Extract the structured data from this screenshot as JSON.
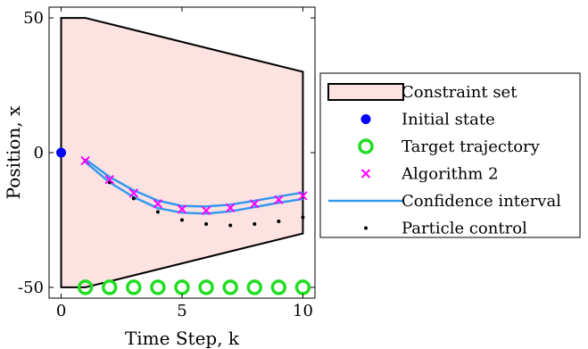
{
  "chart_data": {
    "type": "line",
    "xlabel": "Time Step, k",
    "ylabel": "Position, x",
    "xlim": [
      -0.5,
      10.5
    ],
    "ylim": [
      -54,
      54
    ],
    "xticks": [
      0,
      5,
      10
    ],
    "xtick_labels": [
      "0",
      "5",
      "10"
    ],
    "yticks": [
      50,
      0,
      -50
    ],
    "ytick_labels": [
      "50",
      "0",
      "-50"
    ],
    "grid": false,
    "legend_position": "outside-right",
    "constraint_set": {
      "name": "Constraint set",
      "fill_color": "#fde2e2",
      "edge_color": "#000000",
      "vertices": [
        [
          0,
          50
        ],
        [
          1,
          50
        ],
        [
          10,
          30
        ],
        [
          10,
          -30
        ],
        [
          1,
          -50
        ],
        [
          0,
          -50
        ]
      ]
    },
    "series": [
      {
        "name": "Initial state",
        "marker": "filled-circle",
        "color": "#0000ff",
        "points": [
          [
            0,
            0
          ]
        ]
      },
      {
        "name": "Target trajectory",
        "marker": "open-circle",
        "color": "#22dd22",
        "points": [
          [
            1,
            -50
          ],
          [
            2,
            -50
          ],
          [
            3,
            -50
          ],
          [
            4,
            -50
          ],
          [
            5,
            -50
          ],
          [
            6,
            -50
          ],
          [
            7,
            -50
          ],
          [
            8,
            -50
          ],
          [
            9,
            -50
          ],
          [
            10,
            -50
          ]
        ]
      },
      {
        "name": "Algorithm 2",
        "marker": "x",
        "color": "#ff00ff",
        "points": [
          [
            1,
            -3
          ],
          [
            2,
            -10
          ],
          [
            3,
            -15
          ],
          [
            4,
            -19
          ],
          [
            5,
            -21
          ],
          [
            6,
            -21.5
          ],
          [
            7,
            -20.5
          ],
          [
            8,
            -19
          ],
          [
            9,
            -17.5
          ],
          [
            10,
            -16
          ]
        ]
      },
      {
        "name": "Confidence interval",
        "marker": "line",
        "color": "#3399ee",
        "upper": [
          [
            1,
            -2.5
          ],
          [
            2,
            -9
          ],
          [
            3,
            -14
          ],
          [
            4,
            -17.8
          ],
          [
            5,
            -19.8
          ],
          [
            6,
            -20
          ],
          [
            7,
            -19.3
          ],
          [
            8,
            -17.9
          ],
          [
            9,
            -16.3
          ],
          [
            10,
            -14.8
          ]
        ],
        "lower": [
          [
            1,
            -3.5
          ],
          [
            2,
            -11
          ],
          [
            3,
            -16.5
          ],
          [
            4,
            -20.6
          ],
          [
            5,
            -22.3
          ],
          [
            6,
            -22.6
          ],
          [
            7,
            -21.8
          ],
          [
            8,
            -20.2
          ],
          [
            9,
            -18.6
          ],
          [
            10,
            -17.2
          ]
        ]
      },
      {
        "name": "Particle control",
        "marker": "dot",
        "color": "#000000",
        "points": [
          [
            1,
            -3
          ],
          [
            2,
            -11
          ],
          [
            3,
            -17
          ],
          [
            4,
            -22
          ],
          [
            5,
            -25
          ],
          [
            6,
            -26.5
          ],
          [
            7,
            -27
          ],
          [
            8,
            -26.5
          ],
          [
            9,
            -25.5
          ],
          [
            10,
            -24
          ]
        ]
      }
    ]
  }
}
